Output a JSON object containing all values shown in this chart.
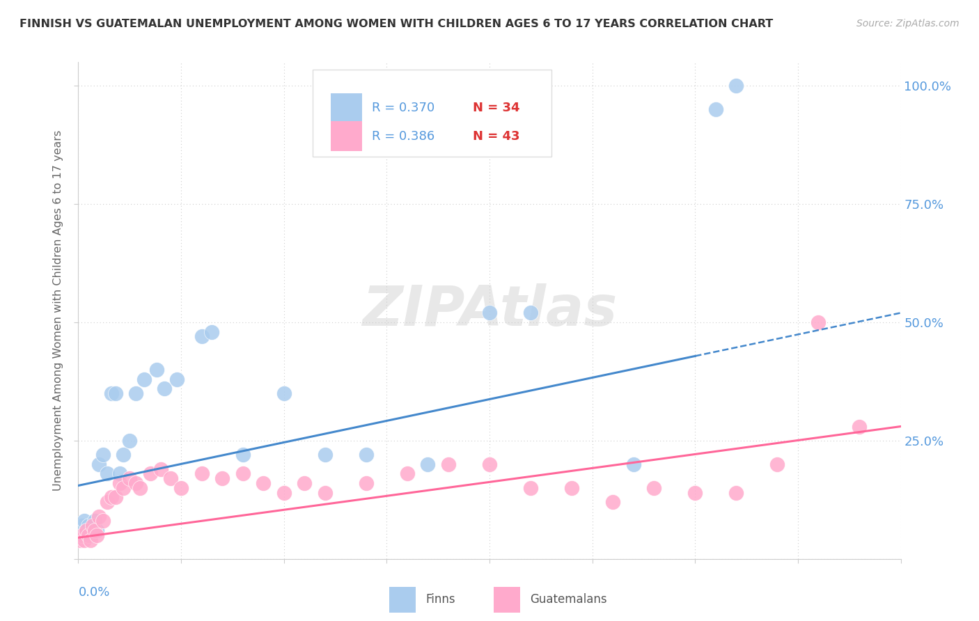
{
  "title": "FINNISH VS GUATEMALAN UNEMPLOYMENT AMONG WOMEN WITH CHILDREN AGES 6 TO 17 YEARS CORRELATION CHART",
  "source": "Source: ZipAtlas.com",
  "ylabel": "Unemployment Among Women with Children Ages 6 to 17 years",
  "xlim": [
    0.0,
    0.4
  ],
  "ylim": [
    0.0,
    1.05
  ],
  "yticks": [
    0.0,
    0.25,
    0.5,
    0.75,
    1.0
  ],
  "ytick_labels": [
    "",
    "25.0%",
    "50.0%",
    "75.0%",
    "100.0%"
  ],
  "axis_color": "#5599dd",
  "finns_color": "#aaccee",
  "guatemalans_color": "#ffaacc",
  "finns_line_color": "#4488cc",
  "guatemalans_line_color": "#ff6699",
  "finns_R": 0.37,
  "finns_N": 34,
  "guatemalans_R": 0.386,
  "guatemalans_N": 43,
  "finns_x": [
    0.001,
    0.002,
    0.003,
    0.004,
    0.005,
    0.006,
    0.007,
    0.008,
    0.009,
    0.01,
    0.012,
    0.014,
    0.016,
    0.018,
    0.02,
    0.022,
    0.025,
    0.028,
    0.032,
    0.038,
    0.042,
    0.048,
    0.06,
    0.065,
    0.08,
    0.1,
    0.12,
    0.14,
    0.17,
    0.2,
    0.22,
    0.27,
    0.31,
    0.32
  ],
  "finns_y": [
    0.05,
    0.07,
    0.08,
    0.06,
    0.07,
    0.05,
    0.06,
    0.08,
    0.06,
    0.2,
    0.22,
    0.18,
    0.35,
    0.35,
    0.18,
    0.22,
    0.25,
    0.35,
    0.38,
    0.4,
    0.36,
    0.38,
    0.47,
    0.48,
    0.22,
    0.35,
    0.22,
    0.22,
    0.2,
    0.52,
    0.52,
    0.2,
    0.95,
    1.0
  ],
  "guatemalans_x": [
    0.001,
    0.002,
    0.003,
    0.004,
    0.005,
    0.006,
    0.007,
    0.008,
    0.009,
    0.01,
    0.012,
    0.014,
    0.016,
    0.018,
    0.02,
    0.022,
    0.025,
    0.028,
    0.03,
    0.035,
    0.04,
    0.045,
    0.05,
    0.06,
    0.07,
    0.08,
    0.09,
    0.1,
    0.11,
    0.12,
    0.14,
    0.16,
    0.18,
    0.2,
    0.22,
    0.24,
    0.26,
    0.28,
    0.3,
    0.32,
    0.34,
    0.36,
    0.38
  ],
  "guatemalans_y": [
    0.04,
    0.05,
    0.04,
    0.06,
    0.05,
    0.04,
    0.07,
    0.06,
    0.05,
    0.09,
    0.08,
    0.12,
    0.13,
    0.13,
    0.16,
    0.15,
    0.17,
    0.16,
    0.15,
    0.18,
    0.19,
    0.17,
    0.15,
    0.18,
    0.17,
    0.18,
    0.16,
    0.14,
    0.16,
    0.14,
    0.16,
    0.18,
    0.2,
    0.2,
    0.15,
    0.15,
    0.12,
    0.15,
    0.14,
    0.14,
    0.2,
    0.5,
    0.28
  ],
  "finns_line_x0": 0.0,
  "finns_line_y0": 0.155,
  "finns_line_x1": 0.4,
  "finns_line_y1": 0.52,
  "guatemalans_line_x0": 0.0,
  "guatemalans_line_y0": 0.045,
  "guatemalans_line_x1": 0.4,
  "guatemalans_line_y1": 0.28
}
